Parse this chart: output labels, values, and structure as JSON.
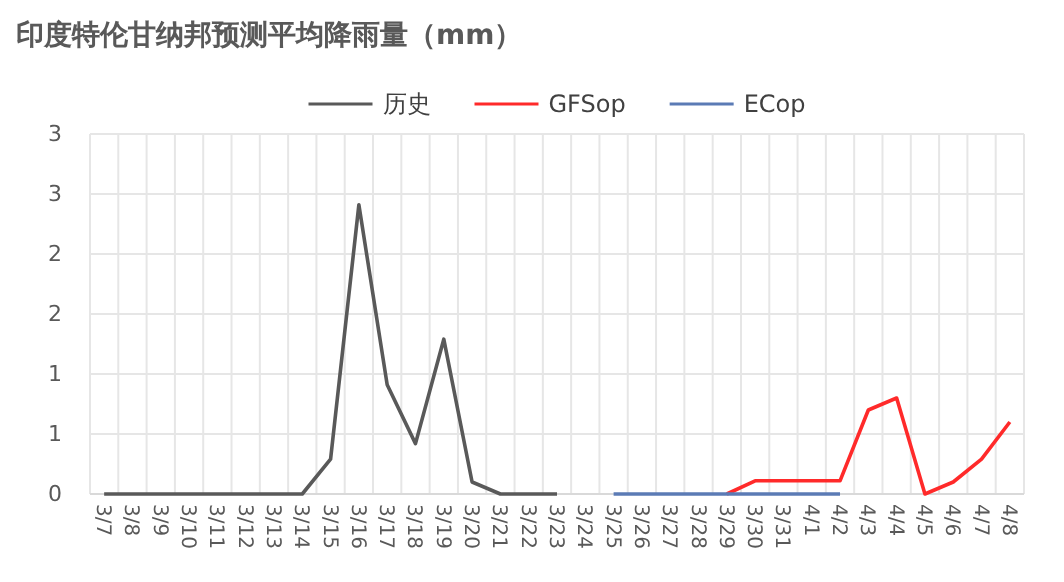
{
  "chart_data": {
    "type": "line",
    "title": "印度特伦甘纳邦预测平均降雨量（mm）",
    "categories": [
      "3/7",
      "3/8",
      "3/9",
      "3/10",
      "3/11",
      "3/12",
      "3/13",
      "3/14",
      "3/15",
      "3/16",
      "3/17",
      "3/18",
      "3/19",
      "3/20",
      "3/21",
      "3/22",
      "3/23",
      "3/24",
      "3/25",
      "3/26",
      "3/27",
      "3/28",
      "3/29",
      "3/30",
      "3/31",
      "4/1",
      "4/2",
      "4/3",
      "4/4",
      "4/5",
      "4/6",
      "4/7",
      "4/8"
    ],
    "series": [
      {
        "name": "历史",
        "color": "#595959",
        "values": [
          0,
          0,
          0,
          0,
          0,
          0,
          0,
          0,
          0.29,
          2.41,
          0.91,
          0.42,
          1.29,
          0.1,
          0,
          0,
          0,
          null,
          null,
          null,
          null,
          null,
          null,
          null,
          null,
          null,
          null,
          null,
          null,
          null,
          null,
          null,
          null
        ]
      },
      {
        "name": "GFSop",
        "color": "#ff2a2a",
        "values": [
          null,
          null,
          null,
          null,
          null,
          null,
          null,
          null,
          null,
          null,
          null,
          null,
          null,
          null,
          null,
          null,
          null,
          null,
          null,
          null,
          null,
          null,
          0,
          0.11,
          0.11,
          0.11,
          0.11,
          0.7,
          0.8,
          0,
          0.1,
          0.29,
          0.6
        ]
      },
      {
        "name": "ECop",
        "color": "#5b7bb5",
        "values": [
          null,
          null,
          null,
          null,
          null,
          null,
          null,
          null,
          null,
          null,
          null,
          null,
          null,
          null,
          null,
          null,
          null,
          null,
          0,
          0,
          0,
          0,
          0,
          0,
          0,
          0,
          0,
          null,
          null,
          null,
          null,
          null,
          null
        ]
      }
    ],
    "ylim": [
      0,
      3
    ],
    "yticks": [
      0,
      {
        "value": 0.5,
        "label": "1"
      },
      1,
      {
        "value": 1.5,
        "label": "2"
      },
      2,
      {
        "value": 2.5,
        "label": "3"
      },
      3
    ],
    "grid": true,
    "legend": "top",
    "marker": "none",
    "line_style": "solid"
  }
}
